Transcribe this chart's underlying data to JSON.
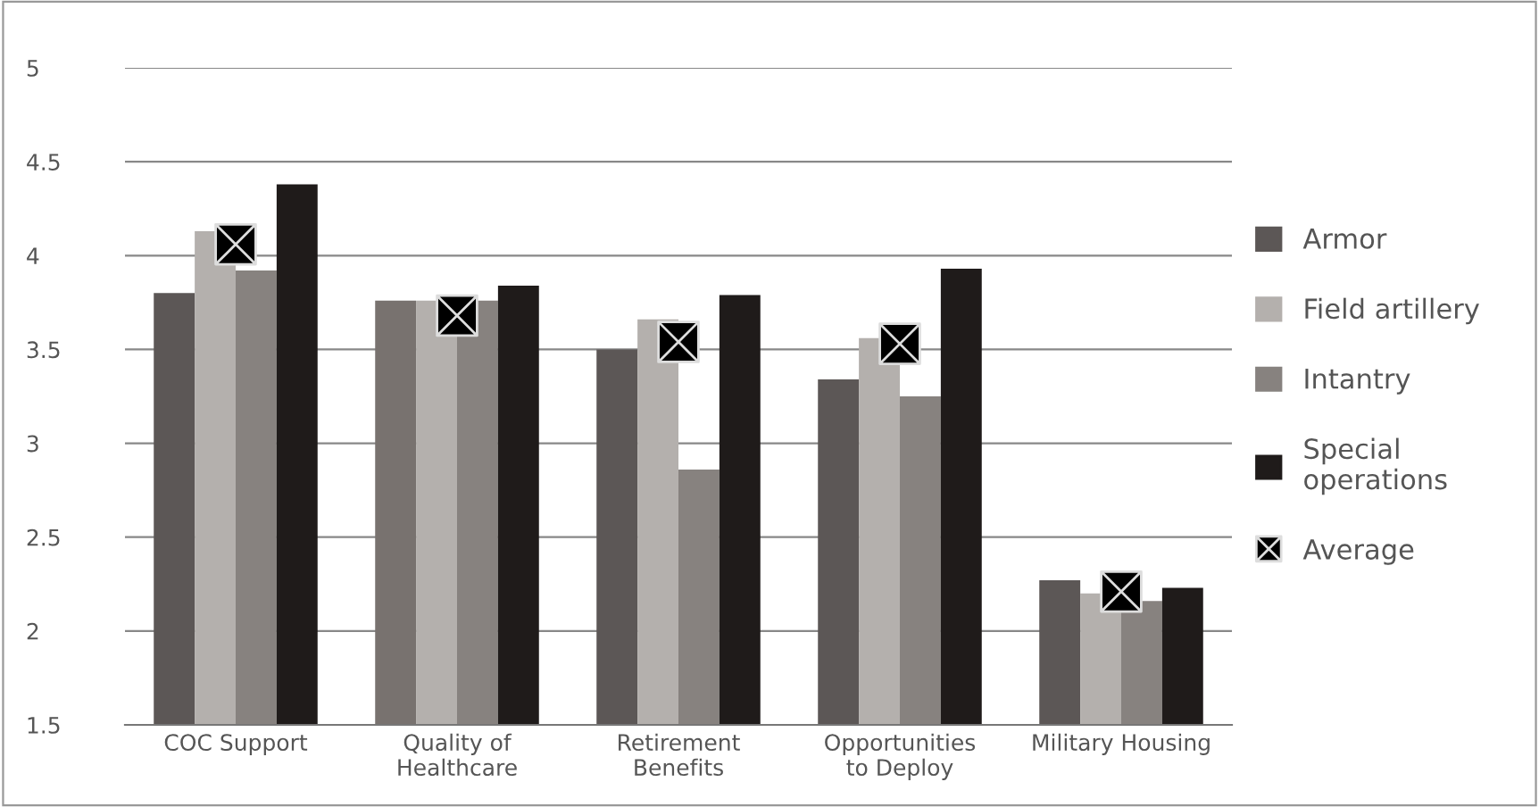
{
  "chart_data": {
    "type": "bar",
    "categories": [
      "COC Support",
      "Quality of\nHealthcare",
      "Retirement\nBenefits",
      "Opportunities\nto Deploy",
      "Military Housing"
    ],
    "series": [
      {
        "name": "Armor",
        "color": "#5c5756",
        "colors": [
          "#5c5756",
          "#78726f",
          "#5c5756",
          "#5c5756",
          "#5c5756"
        ],
        "values": [
          3.8,
          3.76,
          3.5,
          3.34,
          2.27
        ]
      },
      {
        "name": "Field artillery",
        "color": "#b4b0ad",
        "values": [
          4.13,
          3.76,
          3.66,
          3.56,
          2.2
        ]
      },
      {
        "name": "Intantry",
        "color": "#87827f",
        "values": [
          3.92,
          3.76,
          2.86,
          3.25,
          2.16
        ]
      },
      {
        "name": "Special\noperations",
        "color": "#1f1b1a",
        "values": [
          4.38,
          3.84,
          3.79,
          3.93,
          2.23
        ]
      },
      {
        "name": "Average",
        "type": "scatter",
        "color": "#000000",
        "marker": "cross",
        "values": [
          4.06,
          3.68,
          3.54,
          3.53,
          2.21
        ]
      }
    ],
    "ylim": [
      1.5,
      5
    ],
    "yticks": [
      1.5,
      2,
      2.5,
      3,
      3.5,
      4,
      4.5,
      5
    ],
    "grid": "y",
    "legend": "right"
  }
}
